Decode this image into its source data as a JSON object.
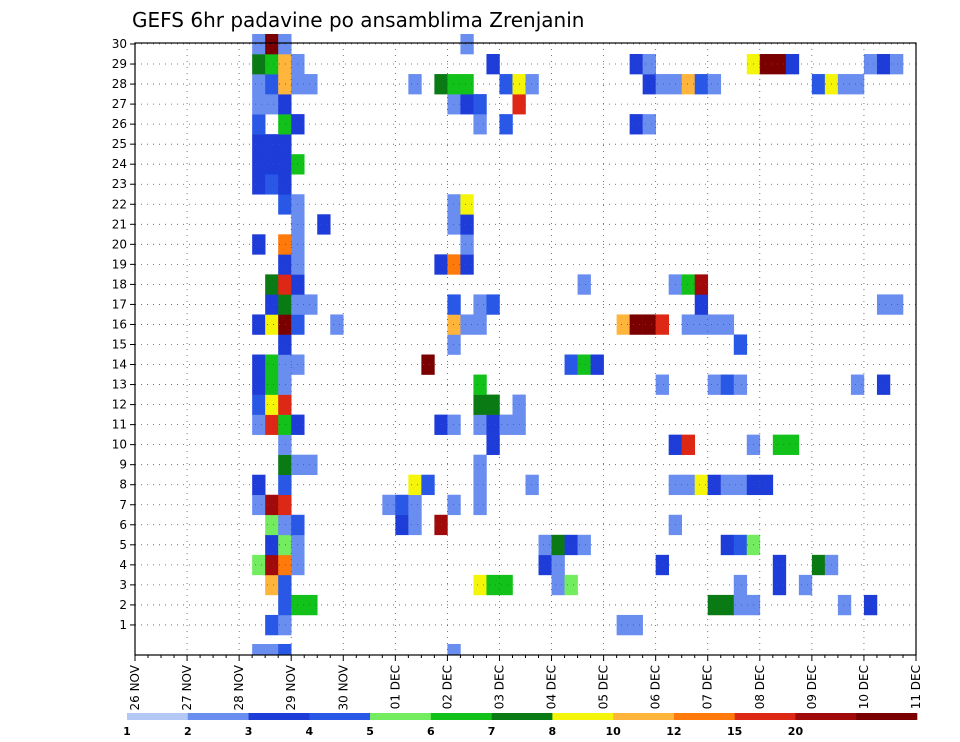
{
  "chart_data": {
    "type": "heatmap",
    "title": "GEFS 6hr padavine po ansamblima Zrenjanin",
    "x_ticks": [
      "26 NOV",
      "27 NOV",
      "28 NOV",
      "29 NOV",
      "30 NOV",
      "01 DEC",
      "02 DEC",
      "03 DEC",
      "04 DEC",
      "05 DEC",
      "06 DEC",
      "07 DEC",
      "08 DEC",
      "09 DEC",
      "10 DEC",
      "11 DEC"
    ],
    "y_ticks": [
      "1",
      "2",
      "3",
      "4",
      "5",
      "6",
      "7",
      "8",
      "9",
      "10",
      "11",
      "12",
      "13",
      "14",
      "15",
      "16",
      "17",
      "18",
      "19",
      "20",
      "21",
      "22",
      "23",
      "24",
      "25",
      "26",
      "27",
      "28",
      "29",
      "30"
    ],
    "x_unit": "6-hour steps from 26 NOV",
    "ylim": [
      0,
      30
    ],
    "grid": true,
    "scale": {
      "thresholds": [
        "1",
        "2",
        "3",
        "4",
        "5",
        "6",
        "7",
        "8",
        "10",
        "12",
        "15",
        "20"
      ],
      "colors": [
        "#b4c8f5",
        "#6a8ef0",
        "#1e3cd8",
        "#2a58e6",
        "#74ec60",
        "#12c21a",
        "#0a7a14",
        "#f5f50a",
        "#ffb43c",
        "#ff7a0a",
        "#dc2814",
        "#a00a0a",
        "#7a0000"
      ]
    },
    "cells": [
      [
        9,
        0,
        1
      ],
      [
        10,
        0,
        1
      ],
      [
        11,
        0,
        3
      ],
      [
        24,
        0,
        1
      ],
      [
        10,
        1,
        3
      ],
      [
        11,
        1,
        1
      ],
      [
        37,
        1,
        1
      ],
      [
        38,
        1,
        1
      ],
      [
        11,
        2,
        3
      ],
      [
        12,
        2,
        5
      ],
      [
        13,
        2,
        5
      ],
      [
        44,
        2,
        6
      ],
      [
        45,
        2,
        6
      ],
      [
        46,
        2,
        1
      ],
      [
        47,
        2,
        1
      ],
      [
        54,
        2,
        1
      ],
      [
        56,
        2,
        2
      ],
      [
        10,
        3,
        8
      ],
      [
        11,
        3,
        3
      ],
      [
        26,
        3,
        7
      ],
      [
        27,
        3,
        5
      ],
      [
        28,
        3,
        5
      ],
      [
        32,
        3,
        1
      ],
      [
        33,
        3,
        4
      ],
      [
        46,
        3,
        1
      ],
      [
        49,
        3,
        2
      ],
      [
        51,
        3,
        1
      ],
      [
        9,
        4,
        4
      ],
      [
        10,
        4,
        11
      ],
      [
        11,
        4,
        9
      ],
      [
        12,
        4,
        1
      ],
      [
        31,
        4,
        2
      ],
      [
        32,
        4,
        1
      ],
      [
        40,
        4,
        2
      ],
      [
        49,
        4,
        2
      ],
      [
        52,
        4,
        6
      ],
      [
        53,
        4,
        1
      ],
      [
        10,
        5,
        2
      ],
      [
        11,
        5,
        4
      ],
      [
        12,
        5,
        1
      ],
      [
        31,
        5,
        1
      ],
      [
        32,
        5,
        6
      ],
      [
        33,
        5,
        2
      ],
      [
        34,
        5,
        1
      ],
      [
        45,
        5,
        2
      ],
      [
        46,
        5,
        3
      ],
      [
        47,
        5,
        4
      ],
      [
        10,
        6,
        4
      ],
      [
        11,
        6,
        1
      ],
      [
        12,
        6,
        3
      ],
      [
        20,
        6,
        2
      ],
      [
        21,
        6,
        1
      ],
      [
        23,
        6,
        11
      ],
      [
        41,
        6,
        1
      ],
      [
        9,
        7,
        1
      ],
      [
        10,
        7,
        11
      ],
      [
        11,
        7,
        10
      ],
      [
        19,
        7,
        1
      ],
      [
        20,
        7,
        3
      ],
      [
        21,
        7,
        1
      ],
      [
        24,
        7,
        1
      ],
      [
        26,
        7,
        1
      ],
      [
        9,
        8,
        2
      ],
      [
        11,
        8,
        3
      ],
      [
        21,
        8,
        7
      ],
      [
        22,
        8,
        3
      ],
      [
        26,
        8,
        1
      ],
      [
        30,
        8,
        1
      ],
      [
        41,
        8,
        1
      ],
      [
        42,
        8,
        1
      ],
      [
        43,
        8,
        7
      ],
      [
        44,
        8,
        2
      ],
      [
        45,
        8,
        1
      ],
      [
        46,
        8,
        1
      ],
      [
        47,
        8,
        2
      ],
      [
        48,
        8,
        2
      ],
      [
        11,
        9,
        6
      ],
      [
        12,
        9,
        1
      ],
      [
        13,
        9,
        1
      ],
      [
        26,
        9,
        1
      ],
      [
        11,
        10,
        1
      ],
      [
        27,
        10,
        2
      ],
      [
        41,
        10,
        2
      ],
      [
        42,
        10,
        10
      ],
      [
        47,
        10,
        1
      ],
      [
        49,
        10,
        5
      ],
      [
        50,
        10,
        5
      ],
      [
        9,
        11,
        1
      ],
      [
        10,
        11,
        10
      ],
      [
        11,
        11,
        5
      ],
      [
        12,
        11,
        2
      ],
      [
        23,
        11,
        2
      ],
      [
        24,
        11,
        1
      ],
      [
        26,
        11,
        1
      ],
      [
        27,
        11,
        2
      ],
      [
        28,
        11,
        1
      ],
      [
        29,
        11,
        1
      ],
      [
        9,
        12,
        3
      ],
      [
        10,
        12,
        7
      ],
      [
        11,
        12,
        10
      ],
      [
        26,
        12,
        6
      ],
      [
        27,
        12,
        6
      ],
      [
        29,
        12,
        1
      ],
      [
        9,
        13,
        2
      ],
      [
        10,
        13,
        5
      ],
      [
        11,
        13,
        1
      ],
      [
        26,
        13,
        5
      ],
      [
        40,
        13,
        1
      ],
      [
        44,
        13,
        1
      ],
      [
        45,
        13,
        3
      ],
      [
        46,
        13,
        1
      ],
      [
        55,
        13,
        1
      ],
      [
        57,
        13,
        2
      ],
      [
        9,
        14,
        2
      ],
      [
        10,
        14,
        5
      ],
      [
        11,
        14,
        1
      ],
      [
        12,
        14,
        1
      ],
      [
        22,
        14,
        12
      ],
      [
        33,
        14,
        3
      ],
      [
        34,
        14,
        5
      ],
      [
        35,
        14,
        2
      ],
      [
        11,
        15,
        2
      ],
      [
        24,
        15,
        1
      ],
      [
        46,
        15,
        3
      ],
      [
        9,
        16,
        2
      ],
      [
        10,
        16,
        7
      ],
      [
        11,
        16,
        12
      ],
      [
        12,
        16,
        3
      ],
      [
        15,
        16,
        1
      ],
      [
        24,
        16,
        8
      ],
      [
        25,
        16,
        1
      ],
      [
        26,
        16,
        1
      ],
      [
        37,
        16,
        8
      ],
      [
        38,
        16,
        12
      ],
      [
        39,
        16,
        12
      ],
      [
        40,
        16,
        10
      ],
      [
        42,
        16,
        1
      ],
      [
        43,
        16,
        1
      ],
      [
        44,
        16,
        1
      ],
      [
        45,
        16,
        1
      ],
      [
        10,
        17,
        2
      ],
      [
        11,
        17,
        6
      ],
      [
        12,
        17,
        1
      ],
      [
        13,
        17,
        1
      ],
      [
        24,
        17,
        3
      ],
      [
        26,
        17,
        1
      ],
      [
        27,
        17,
        3
      ],
      [
        43,
        17,
        2
      ],
      [
        57,
        17,
        1
      ],
      [
        58,
        17,
        1
      ],
      [
        10,
        18,
        6
      ],
      [
        11,
        18,
        10
      ],
      [
        12,
        18,
        2
      ],
      [
        34,
        18,
        1
      ],
      [
        41,
        18,
        1
      ],
      [
        42,
        18,
        5
      ],
      [
        43,
        18,
        11
      ],
      [
        11,
        19,
        2
      ],
      [
        12,
        19,
        1
      ],
      [
        23,
        19,
        2
      ],
      [
        24,
        19,
        9
      ],
      [
        25,
        19,
        2
      ],
      [
        9,
        20,
        2
      ],
      [
        11,
        20,
        9
      ],
      [
        12,
        20,
        1
      ],
      [
        25,
        20,
        1
      ],
      [
        12,
        21,
        1
      ],
      [
        14,
        21,
        2
      ],
      [
        24,
        21,
        1
      ],
      [
        25,
        21,
        2
      ],
      [
        11,
        22,
        3
      ],
      [
        12,
        22,
        1
      ],
      [
        24,
        22,
        1
      ],
      [
        25,
        22,
        7
      ],
      [
        9,
        23,
        2
      ],
      [
        10,
        23,
        3
      ],
      [
        11,
        23,
        2
      ],
      [
        9,
        24,
        2
      ],
      [
        10,
        24,
        2
      ],
      [
        11,
        24,
        2
      ],
      [
        12,
        24,
        5
      ],
      [
        9,
        25,
        2
      ],
      [
        10,
        25,
        2
      ],
      [
        11,
        25,
        2
      ],
      [
        9,
        26,
        3
      ],
      [
        11,
        26,
        5
      ],
      [
        12,
        26,
        2
      ],
      [
        26,
        26,
        1
      ],
      [
        28,
        26,
        3
      ],
      [
        38,
        26,
        2
      ],
      [
        39,
        26,
        1
      ],
      [
        9,
        27,
        1
      ],
      [
        10,
        27,
        1
      ],
      [
        11,
        27,
        2
      ],
      [
        24,
        27,
        1
      ],
      [
        25,
        27,
        2
      ],
      [
        26,
        27,
        3
      ],
      [
        29,
        27,
        10
      ],
      [
        9,
        28,
        1
      ],
      [
        10,
        28,
        3
      ],
      [
        11,
        28,
        8
      ],
      [
        12,
        28,
        1
      ],
      [
        13,
        28,
        1
      ],
      [
        21,
        28,
        1
      ],
      [
        23,
        28,
        6
      ],
      [
        24,
        28,
        5
      ],
      [
        25,
        28,
        5
      ],
      [
        28,
        28,
        3
      ],
      [
        29,
        28,
        7
      ],
      [
        30,
        28,
        1
      ],
      [
        39,
        28,
        2
      ],
      [
        40,
        28,
        1
      ],
      [
        41,
        28,
        1
      ],
      [
        42,
        28,
        8
      ],
      [
        43,
        28,
        3
      ],
      [
        44,
        28,
        1
      ],
      [
        52,
        28,
        3
      ],
      [
        53,
        28,
        7
      ],
      [
        54,
        28,
        1
      ],
      [
        55,
        28,
        1
      ],
      [
        9,
        29,
        6
      ],
      [
        10,
        29,
        5
      ],
      [
        11,
        29,
        8
      ],
      [
        12,
        29,
        1
      ],
      [
        27,
        29,
        2
      ],
      [
        38,
        29,
        2
      ],
      [
        39,
        29,
        1
      ],
      [
        47,
        29,
        7
      ],
      [
        48,
        29,
        12
      ],
      [
        49,
        29,
        12
      ],
      [
        50,
        29,
        2
      ],
      [
        56,
        29,
        1
      ],
      [
        57,
        29,
        2
      ],
      [
        58,
        29,
        1
      ],
      [
        9,
        30,
        1
      ],
      [
        10,
        30,
        12
      ],
      [
        11,
        30,
        1
      ],
      [
        25,
        30,
        1
      ]
    ]
  }
}
